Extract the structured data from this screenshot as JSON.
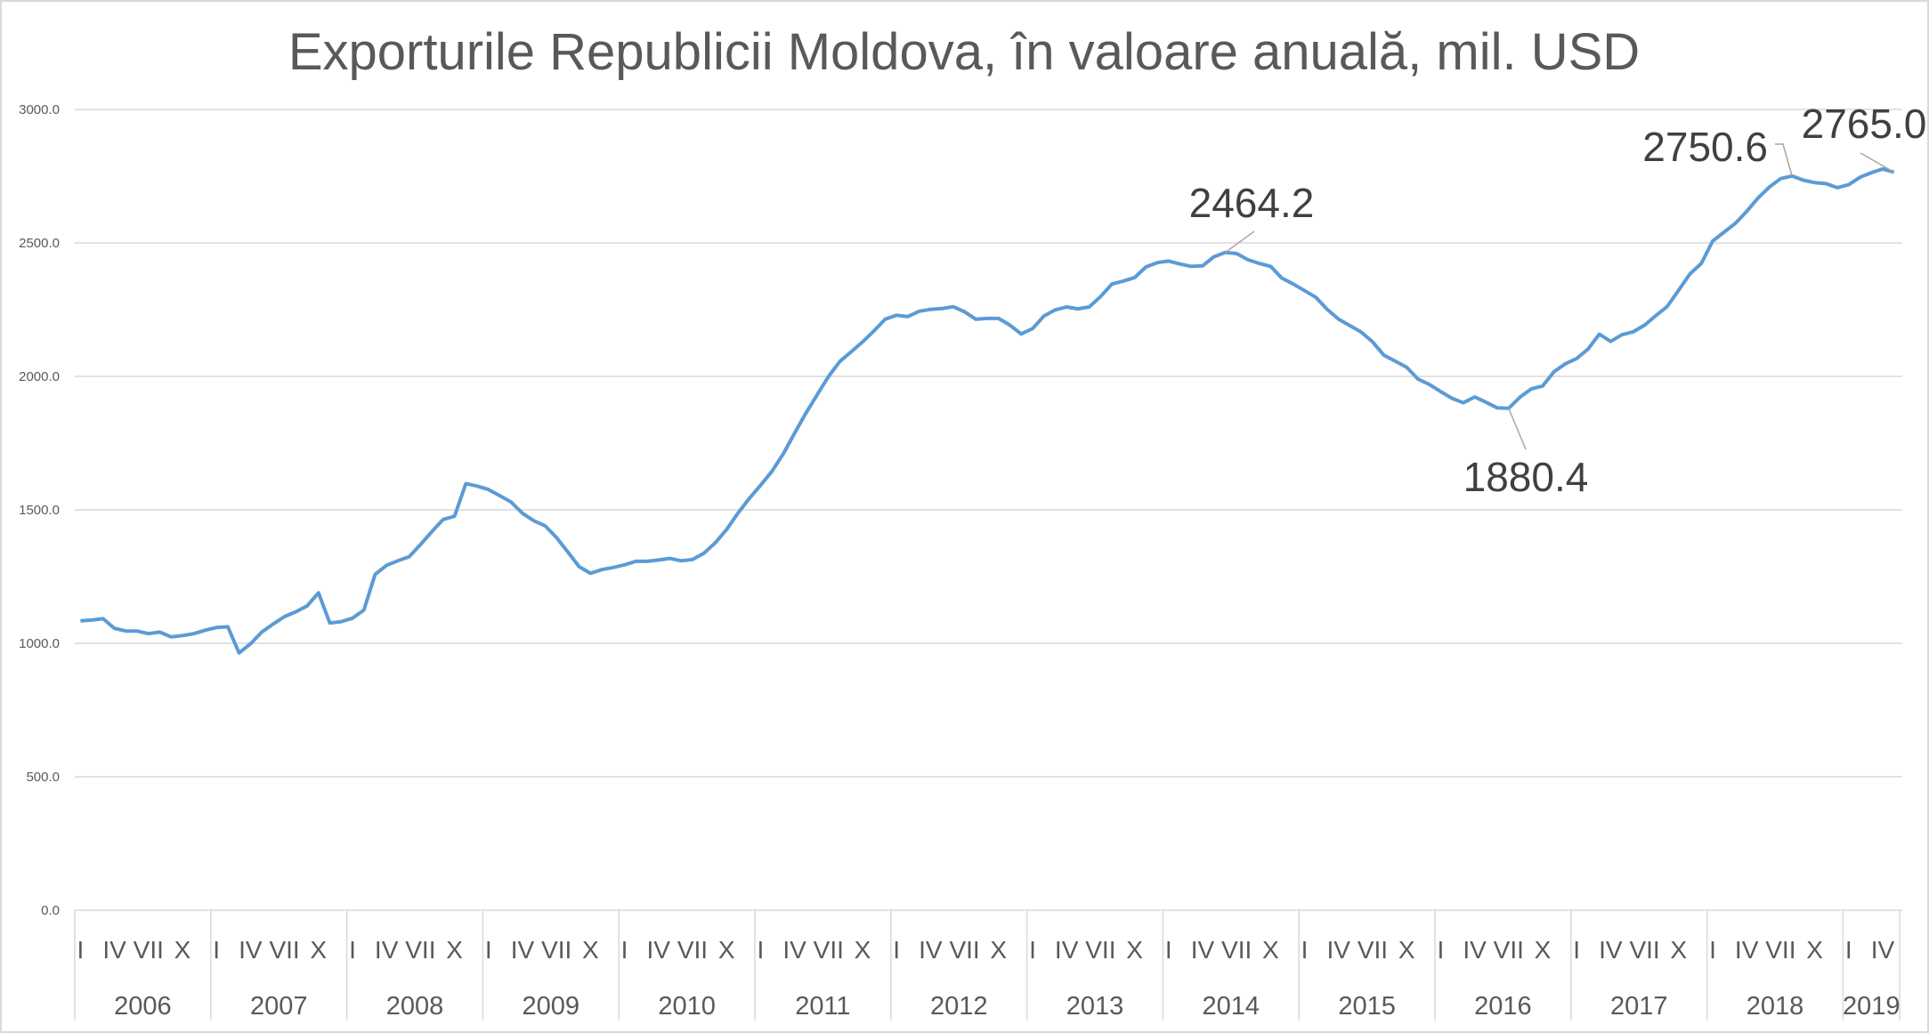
{
  "chart_data": {
    "type": "line",
    "title": "Exporturile Republicii Moldova, în valoare anuală, mil. USD",
    "xlabel": "",
    "ylabel": "",
    "ylim": [
      0,
      3000
    ],
    "yticks": [
      "0.0",
      "500.0",
      "1000.0",
      "1500.0",
      "2000.0",
      "2500.0",
      "3000.0"
    ],
    "grid": true,
    "legend": "none",
    "line_color": "#5B9BD5",
    "years": [
      "2006",
      "2007",
      "2008",
      "2009",
      "2010",
      "2011",
      "2012",
      "2013",
      "2014",
      "2015",
      "2016",
      "2017",
      "2018",
      "2019"
    ],
    "month_tick_labels": {
      "0": "I",
      "3": "IV",
      "6": "VII",
      "9": "X"
    },
    "series": [
      {
        "values": [
          1084,
          1087,
          1092,
          1056,
          1046,
          1046,
          1036,
          1042,
          1024,
          1029,
          1036,
          1049,
          1059,
          1062,
          964,
          998,
          1042,
          1072,
          1100,
          1118,
          1140,
          1189,
          1076,
          1081,
          1094,
          1124,
          1258,
          1292,
          1309,
          1324,
          1370,
          1418,
          1464,
          1476,
          1598,
          1589,
          1576,
          1553,
          1529,
          1487,
          1459,
          1440,
          1396,
          1342,
          1287,
          1262,
          1276,
          1284,
          1294,
          1307,
          1307,
          1312,
          1318,
          1309,
          1314,
          1337,
          1376,
          1426,
          1487,
          1542,
          1592,
          1644,
          1709,
          1787,
          1862,
          1931,
          2000,
          2056,
          2092,
          2129,
          2170,
          2214,
          2229,
          2224,
          2244,
          2251,
          2254,
          2261,
          2242,
          2214,
          2217,
          2217,
          2192,
          2159,
          2179,
          2226,
          2249,
          2260,
          2253,
          2260,
          2299,
          2346,
          2357,
          2370,
          2410,
          2426,
          2432,
          2421,
          2412,
          2414,
          2448,
          2464.2,
          2460,
          2437,
          2423,
          2412,
          2368,
          2346,
          2321,
          2296,
          2251,
          2214,
          2190,
          2166,
          2129,
          2079,
          2057,
          2034,
          1990,
          1970,
          1943,
          1918,
          1901,
          1923,
          1903,
          1882,
          1880.4,
          1922,
          1953,
          1964,
          2017,
          2047,
          2067,
          2102,
          2158,
          2131,
          2156,
          2167,
          2192,
          2228,
          2262,
          2323,
          2384,
          2423,
          2507,
          2540,
          2573,
          2618,
          2668,
          2709,
          2741,
          2750.6,
          2735,
          2726,
          2722,
          2707,
          2718,
          2746,
          2763,
          2777,
          2765.0
        ]
      }
    ],
    "data_labels": [
      {
        "index": 101,
        "text": "2464.2"
      },
      {
        "index": 126,
        "text": "1880.4"
      },
      {
        "index": 151,
        "text": "2750.6"
      },
      {
        "index": 160,
        "text": "2765.0"
      }
    ]
  }
}
